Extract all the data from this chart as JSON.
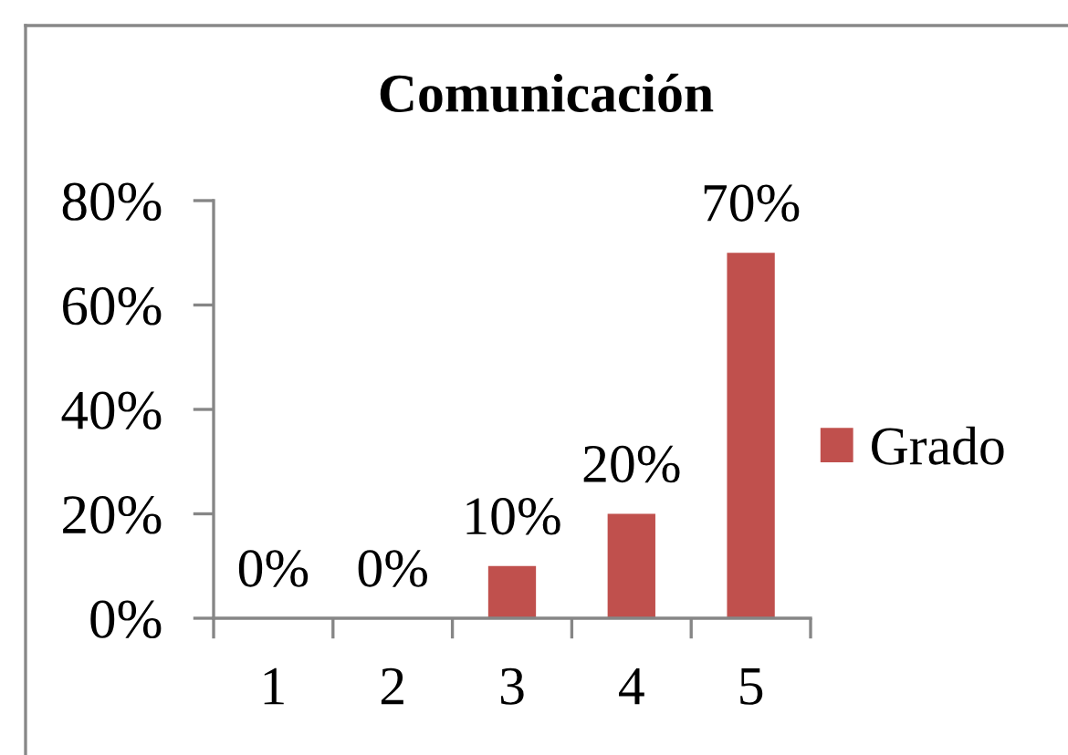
{
  "chart_data": {
    "type": "bar",
    "title": "Comunicación",
    "categories": [
      "1",
      "2",
      "3",
      "4",
      "5"
    ],
    "series": [
      {
        "name": "Grado",
        "color": "#c0504d",
        "values": [
          0,
          0,
          10,
          20,
          70
        ],
        "value_labels": [
          "0%",
          "0%",
          "10%",
          "20%",
          "70%"
        ]
      }
    ],
    "ylim": [
      0,
      80
    ],
    "yticks": [
      {
        "value": 0,
        "label": "0%"
      },
      {
        "value": 20,
        "label": "20%"
      },
      {
        "value": 40,
        "label": "40%"
      },
      {
        "value": 60,
        "label": "60%"
      },
      {
        "value": 80,
        "label": "80%"
      }
    ],
    "grid": false,
    "legend": "right"
  }
}
